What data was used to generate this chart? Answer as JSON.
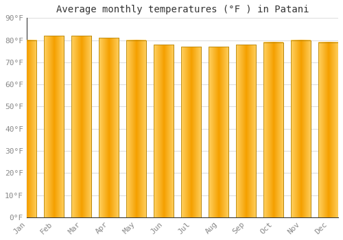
{
  "months": [
    "Jan",
    "Feb",
    "Mar",
    "Apr",
    "May",
    "Jun",
    "Jul",
    "Aug",
    "Sep",
    "Oct",
    "Nov",
    "Dec"
  ],
  "values": [
    80,
    82,
    82,
    81,
    80,
    78,
    77,
    77,
    78,
    79,
    80,
    79
  ],
  "title": "Average monthly temperatures (°F ) in Patani",
  "ylim": [
    0,
    90
  ],
  "yticks": [
    0,
    10,
    20,
    30,
    40,
    50,
    60,
    70,
    80,
    90
  ],
  "ytick_labels": [
    "0°F",
    "10°F",
    "20°F",
    "30°F",
    "40°F",
    "50°F",
    "60°F",
    "70°F",
    "80°F",
    "90°F"
  ],
  "bar_color_center": "#F5A623",
  "bar_color_edge": "#FFD080",
  "bar_edge_color": "#C8870A",
  "background_color": "#FFFFFF",
  "plot_bg_color": "#FFFFFF",
  "grid_color": "#DDDDDD",
  "title_fontsize": 10,
  "tick_fontsize": 8,
  "title_color": "#333333",
  "tick_color": "#888888"
}
